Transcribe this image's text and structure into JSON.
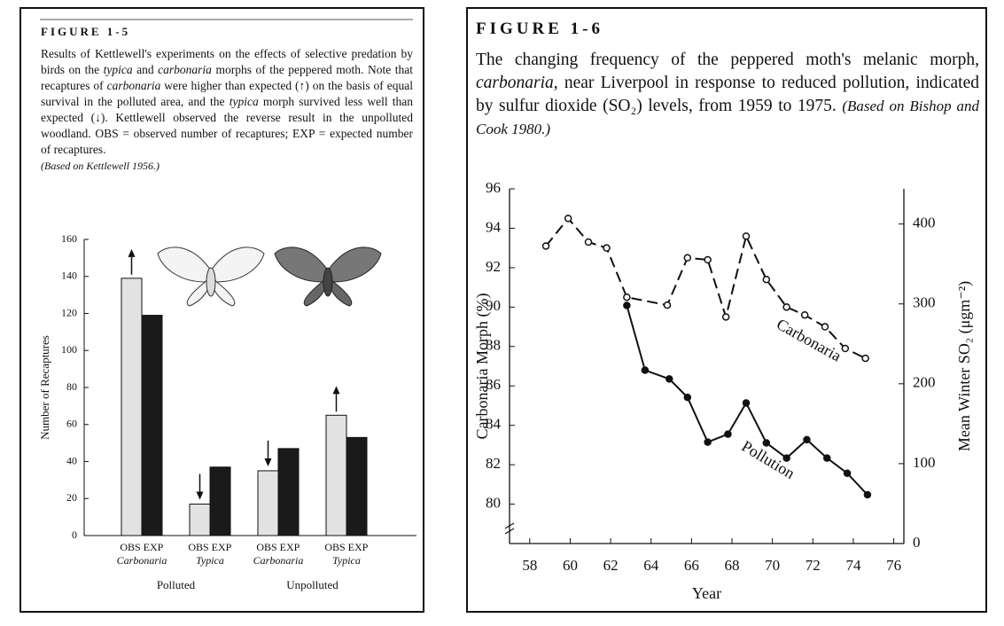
{
  "chart_data": [
    {
      "type": "bar",
      "figure": "FIGURE 1-5",
      "caption": [
        "Results of Kettlewell's experiments on the effects of selective predation by birds on the ",
        {
          "italic": "typica"
        },
        " and ",
        {
          "italic": "carbonaria"
        },
        " morphs of the peppered moth. Note that recaptures of ",
        {
          "italic": "carbonaria"
        },
        " were higher than expected (↑) on the basis of equal survival in the polluted area, and the ",
        {
          "italic": "typica"
        },
        " morph survived less well than expected (↓). Kettlewell observed the reverse result in the unpolluted woodland. OBS = observed number of recaptures; EXP = expected number of recaptures."
      ],
      "source": "(Based on Kettlewell 1956.)",
      "ylabel": "Number of Recaptures",
      "categories": [
        "Carbonaria",
        "Typica",
        "Carbonaria",
        "Typica"
      ],
      "groups": [
        "Polluted",
        "Unpolluted"
      ],
      "series": [
        {
          "name": "OBS",
          "color": "#e2e2e2",
          "values": [
            139,
            17,
            35,
            65
          ]
        },
        {
          "name": "EXP",
          "color": "#1a1a1a",
          "values": [
            119,
            37,
            47,
            53
          ]
        }
      ],
      "arrows": [
        "up",
        "down",
        "down",
        "up"
      ],
      "ylim": [
        0,
        160
      ],
      "yticks": [
        0,
        20,
        40,
        60,
        80,
        100,
        120,
        140,
        160
      ]
    },
    {
      "type": "line",
      "figure": "FIGURE 1-6",
      "caption": [
        "The changing frequency of the peppered moth's melanic morph, ",
        {
          "italic": "carbonaria"
        },
        ", near Liverpool in response to reduced pollution, indicated by sulfur dioxide (SO₂) levels, from 1959 to 1975. "
      ],
      "source": "(Based on Bishop and Cook 1980.)",
      "xlabel": "Year",
      "ylabel": "Carbonaria Morph  (%)",
      "y2label": "Mean Winter SO₂  (μgm⁻²)",
      "series": [
        {
          "name": "Carbonaria",
          "color": "#111111",
          "line_style": "dashed",
          "marker_fill": "#ffffff",
          "x": [
            58.8,
            59.9,
            60.9,
            61.8,
            62.8,
            64.8,
            65.8,
            66.8,
            67.7,
            68.7,
            69.7,
            70.7,
            71.6,
            72.6,
            73.6,
            74.6
          ],
          "values": [
            93.1,
            94.5,
            93.3,
            93.0,
            90.5,
            90.1,
            92.5,
            92.4,
            89.5,
            93.6,
            91.4,
            90.0,
            89.6,
            89.0,
            87.9,
            87.4
          ]
        },
        {
          "name": "Pollution",
          "color": "#111111",
          "line_style": "solid",
          "marker_fill": "#111111",
          "axis": "y2",
          "x": [
            62.8,
            63.7,
            64.9,
            65.8,
            66.8,
            67.8,
            68.7,
            69.7,
            70.7,
            71.7,
            72.7,
            73.7,
            74.7
          ],
          "values": [
            298,
            217,
            206,
            183,
            127,
            137,
            176,
            126,
            107,
            130,
            107,
            88,
            61
          ]
        }
      ],
      "xlim": [
        57,
        76.5
      ],
      "xticks": [
        58,
        60,
        62,
        64,
        66,
        68,
        70,
        72,
        74,
        76
      ],
      "ylim": [
        78,
        96
      ],
      "yticks": [
        80,
        82,
        84,
        86,
        88,
        90,
        92,
        94,
        96
      ],
      "y2lim": [
        0,
        444
      ],
      "y2ticks": [
        0,
        100,
        200,
        300,
        400
      ]
    }
  ]
}
